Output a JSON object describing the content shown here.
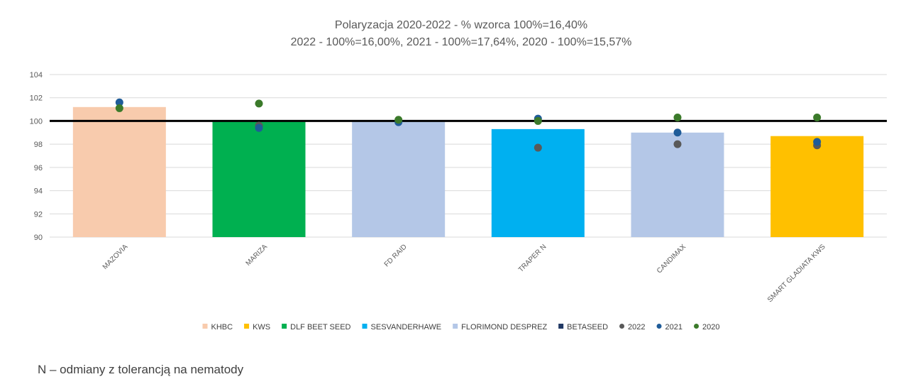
{
  "chart_data": {
    "type": "bar",
    "title": "Polaryzacja 2020-2022 - % wzorca 100%=16,40%",
    "subtitle": "2022 - 100%=16,00%, 2021 - 100%=17,64%, 2020 - 100%=15,57%",
    "ylim": [
      90,
      104
    ],
    "yticks": [
      90,
      92,
      94,
      96,
      98,
      100,
      102,
      104
    ],
    "grid": true,
    "reference_line": 100,
    "categories": [
      "MAZOVIA",
      "MARIZA",
      "FD RAID",
      "TRAPER N",
      "CANDIMAX",
      "SMART GLADIATA KWS"
    ],
    "bar_values": [
      101.2,
      100.0,
      100.0,
      99.3,
      99.0,
      98.7
    ],
    "bar_companies": [
      "KHBC",
      "DLF BEET SEED",
      "FLORIMOND DESPREZ",
      "SESVANDERHAWE",
      "FLORIMOND DESPREZ",
      "KWS"
    ],
    "company_colors": {
      "KHBC": "#f8cbad",
      "KWS": "#ffc000",
      "DLF BEET SEED": "#00b050",
      "SESVANDERHAWE": "#00b0f0",
      "FLORIMOND DESPREZ": "#b4c7e7",
      "BETASEED": "#203864"
    },
    "point_series": [
      {
        "name": "2022",
        "color": "#595959",
        "values": [
          null,
          99.6,
          null,
          97.7,
          98.0,
          97.9
        ]
      },
      {
        "name": "2021",
        "color": "#1f5c99",
        "values": [
          101.6,
          99.4,
          99.9,
          100.2,
          99.0,
          98.2
        ]
      },
      {
        "name": "2020",
        "color": "#3b7a2a",
        "values": [
          101.1,
          101.5,
          100.1,
          100.0,
          100.3,
          100.3
        ]
      }
    ],
    "legend_position": "bottom",
    "legend": [
      {
        "label": "KHBC",
        "kind": "square",
        "color": "#f8cbad"
      },
      {
        "label": "KWS",
        "kind": "square",
        "color": "#ffc000"
      },
      {
        "label": "DLF BEET SEED",
        "kind": "square",
        "color": "#00b050"
      },
      {
        "label": "SESVANDERHAWE",
        "kind": "square",
        "color": "#00b0f0"
      },
      {
        "label": "FLORIMOND DESPREZ",
        "kind": "square",
        "color": "#b4c7e7"
      },
      {
        "label": "BETASEED",
        "kind": "square",
        "color": "#203864"
      },
      {
        "label": "2022",
        "kind": "dot",
        "color": "#595959"
      },
      {
        "label": "2021",
        "kind": "dot",
        "color": "#1f5c99"
      },
      {
        "label": "2020",
        "kind": "dot",
        "color": "#3b7a2a"
      }
    ]
  },
  "footnote": "N – odmiany z tolerancją na nematody"
}
